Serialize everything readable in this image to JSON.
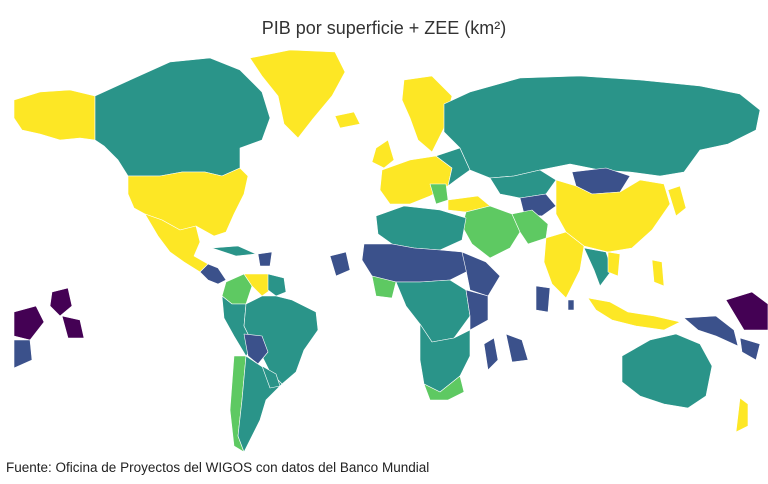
{
  "title": "PIB por superficie + ZEE (km²)",
  "source": "Fuente: Oficina de Proyectos del WIGOS con datos del Banco Mundial",
  "colors": {
    "yellow": "#fde725",
    "light_green": "#5ec962",
    "teal": "#2a9489",
    "blue": "#3b518b",
    "purple": "#440154"
  }
}
